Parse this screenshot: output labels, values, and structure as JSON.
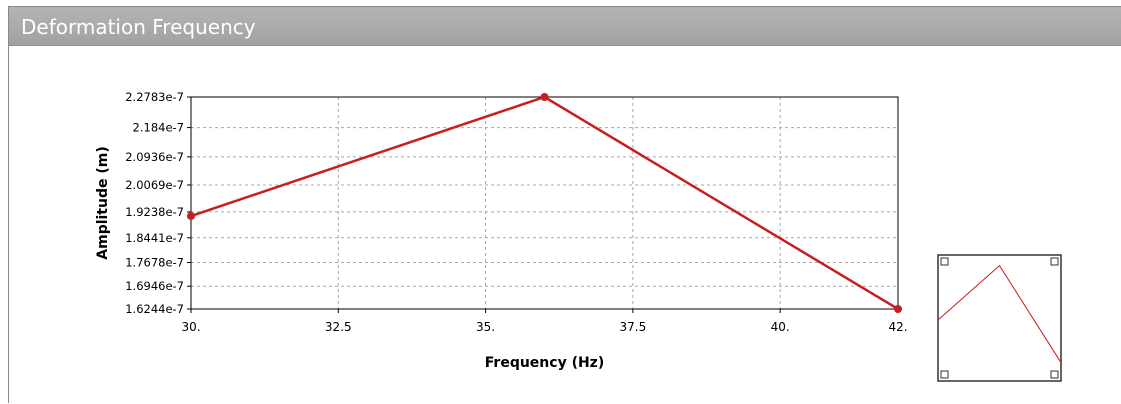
{
  "panel": {
    "title": "Deformation Frequency"
  },
  "chart_data": {
    "type": "line",
    "xlabel": "Frequency (Hz)",
    "ylabel": "Amplitude (m)",
    "xlim": [
      30,
      42
    ],
    "ylim": [
      1.6244e-07,
      2.2783e-07
    ],
    "xticks": [
      "30.",
      "32.5",
      "35.",
      "37.5",
      "40.",
      "42."
    ],
    "xtick_values": [
      30,
      32.5,
      35,
      37.5,
      40,
      42
    ],
    "yticks": [
      "1.6244e-7",
      "1.6946e-7",
      "1.7678e-7",
      "1.8441e-7",
      "1.9238e-7",
      "2.0069e-7",
      "2.0936e-7",
      "2.184e-7",
      "2.2783e-7"
    ],
    "ytick_values": [
      1.6244e-07,
      1.6946e-07,
      1.7678e-07,
      1.8441e-07,
      1.9238e-07,
      2.0069e-07,
      2.0936e-07,
      2.184e-07,
      2.2783e-07
    ],
    "grid": true,
    "series": [
      {
        "x": [
          30,
          36,
          42
        ],
        "y": [
          1.9112e-07,
          2.2783e-07,
          1.6244e-07
        ],
        "color": "#c81e1e"
      }
    ]
  }
}
